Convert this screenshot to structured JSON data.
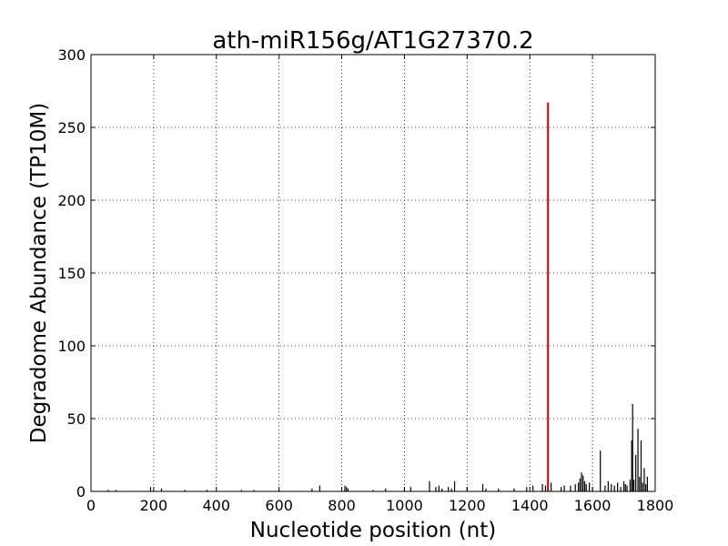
{
  "chart_data": {
    "type": "bar",
    "title": "ath-miR156g/AT1G27370.2",
    "xlabel": "Nucleotide position (nt)",
    "ylabel": "Degradome Abundance (TP10M)",
    "xlim": [
      0,
      1800
    ],
    "ylim": [
      0,
      300
    ],
    "grid": true,
    "x_ticks": [
      0,
      200,
      400,
      600,
      800,
      1000,
      1200,
      1400,
      1600,
      1800
    ],
    "y_ticks": [
      0,
      50,
      100,
      150,
      200,
      250,
      300
    ],
    "x_tick_labels": [
      "0",
      "200",
      "400",
      "600",
      "800",
      "1000",
      "1200",
      "1400",
      "1600",
      "1800"
    ],
    "y_tick_labels": [
      "0",
      "50",
      "100",
      "150",
      "200",
      "250",
      "300"
    ],
    "colors": {
      "background_series": "#000000",
      "target_site": "#d40000"
    },
    "series": [
      {
        "color": "#000000",
        "x": [
          55,
          80,
          190,
          225,
          300,
          370,
          480,
          520,
          600,
          705,
          730,
          810,
          815,
          820,
          900,
          940,
          1000,
          1020,
          1080,
          1100,
          1110,
          1120,
          1140,
          1150,
          1160,
          1200,
          1250,
          1260,
          1300,
          1350,
          1390,
          1410,
          1440,
          1450,
          1468,
          1500,
          1510,
          1530,
          1545,
          1555,
          1560,
          1565,
          1570,
          1575,
          1580,
          1590,
          1600,
          1625,
          1640,
          1650,
          1660,
          1670,
          1680,
          1690,
          1700,
          1705,
          1710,
          1720,
          1725,
          1728,
          1732,
          1738,
          1745,
          1750,
          1755,
          1760,
          1765,
          1770,
          1775
        ],
        "values": [
          1,
          1,
          3,
          2,
          1,
          1,
          1,
          1,
          1,
          2,
          4,
          4,
          3,
          2,
          1,
          2,
          2,
          3,
          7,
          3,
          4,
          2,
          3,
          2,
          7,
          3,
          5,
          2,
          2,
          2,
          3,
          4,
          5,
          4,
          6,
          3,
          4,
          4,
          5,
          6,
          9,
          13,
          11,
          7,
          5,
          6,
          3,
          28,
          4,
          7,
          5,
          4,
          6,
          3,
          7,
          5,
          4,
          8,
          35,
          60,
          8,
          25,
          43,
          10,
          35,
          6,
          16,
          5,
          10
        ]
      },
      {
        "color": "#d40000",
        "x": [
          1458
        ],
        "values": [
          267
        ]
      }
    ]
  }
}
